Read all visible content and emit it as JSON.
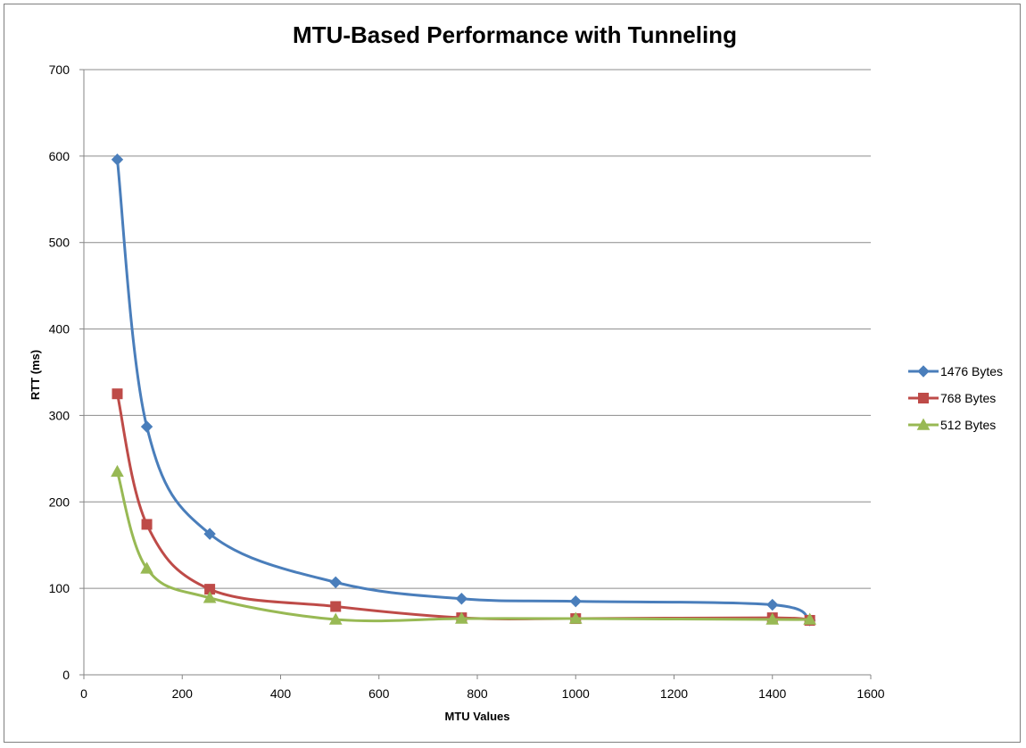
{
  "chart_data": {
    "type": "line",
    "title": "MTU-Based Performance with Tunneling",
    "xlabel": "MTU Values",
    "ylabel": "RTT (ms)",
    "xlim": [
      0,
      1600
    ],
    "ylim": [
      0,
      700
    ],
    "xticks": [
      0,
      200,
      400,
      600,
      800,
      1000,
      1200,
      1400,
      1600
    ],
    "yticks": [
      0,
      100,
      200,
      300,
      400,
      500,
      600,
      700
    ],
    "grid": "horizontal",
    "legend_position": "right",
    "smooth": true,
    "series": [
      {
        "name": "1476 Bytes",
        "color": "#4a7ebb",
        "marker": "diamond",
        "x": [
          68,
          128,
          256,
          512,
          768,
          1000,
          1400,
          1476
        ],
        "y": [
          596,
          287,
          163,
          107,
          88,
          85,
          81,
          63
        ]
      },
      {
        "name": "768 Bytes",
        "color": "#be4b48",
        "marker": "square",
        "x": [
          68,
          128,
          256,
          512,
          768,
          1000,
          1400,
          1476
        ],
        "y": [
          325,
          174,
          99,
          79,
          66,
          65,
          66,
          63
        ]
      },
      {
        "name": "512 Bytes",
        "color": "#98b954",
        "marker": "triangle",
        "x": [
          68,
          128,
          256,
          512,
          768,
          1000,
          1400,
          1476
        ],
        "y": [
          235,
          123,
          89,
          64,
          65,
          65,
          64,
          64
        ]
      }
    ]
  }
}
